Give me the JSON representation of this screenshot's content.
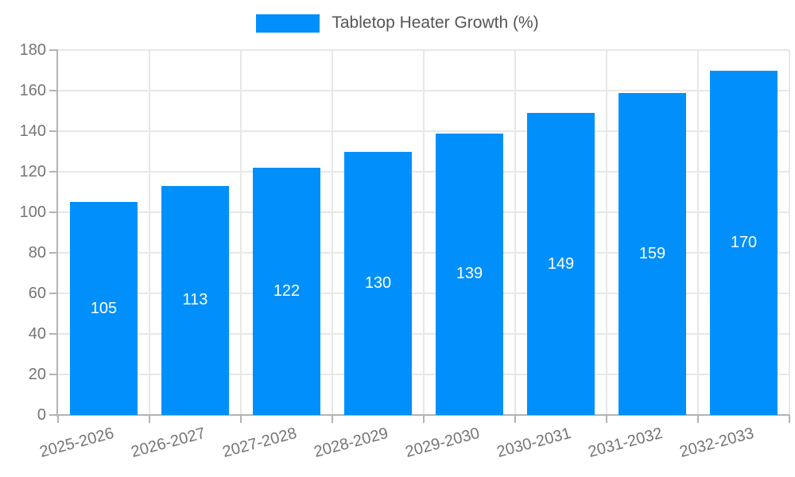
{
  "legend": {
    "label": "Tabletop Heater Growth (%)"
  },
  "chart_data": {
    "type": "bar",
    "title": "Tabletop Heater Growth (%)",
    "categories": [
      "2025-2026",
      "2026-2027",
      "2027-2028",
      "2028-2029",
      "2029-2030",
      "2030-2031",
      "2031-2032",
      "2032-2033"
    ],
    "values": [
      105,
      113,
      122,
      130,
      139,
      149,
      159,
      170
    ],
    "xlabel": "",
    "ylabel": "",
    "ylim": [
      0,
      180
    ],
    "yticks": [
      0,
      20,
      40,
      60,
      80,
      100,
      120,
      140,
      160,
      180
    ],
    "grid": true,
    "legend_position": "top",
    "bar_value_labels": true,
    "x_label_rotation_deg": -15
  },
  "colors": {
    "bar": "#008FFB",
    "grid": "#e7e7e7",
    "axis": "#b3b3b3",
    "tick_label": "#757575",
    "legend_text": "#555555",
    "bar_label": "#ffffff",
    "background": "#ffffff"
  }
}
